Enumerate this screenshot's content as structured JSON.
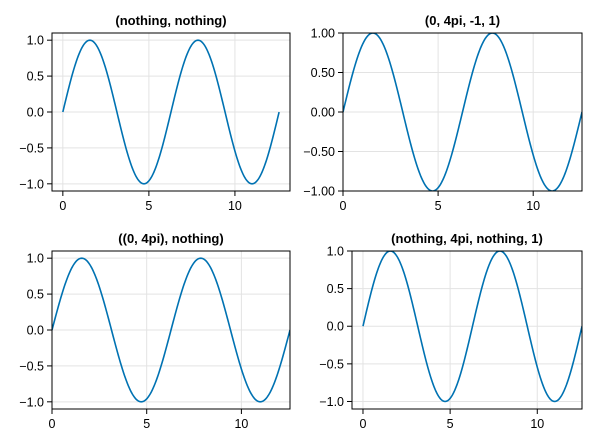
{
  "chart_data": [
    {
      "type": "line",
      "title": "(nothing, nothing)",
      "xlabel": "",
      "ylabel": "",
      "xlim": [
        -0.63,
        13.2
      ],
      "ylim": [
        -1.1,
        1.1
      ],
      "xticks": [
        0,
        5,
        10
      ],
      "xtick_labels": [
        "0",
        "5",
        "10"
      ],
      "yticks": [
        -1.0,
        -0.5,
        0.0,
        0.5,
        1.0
      ],
      "ytick_labels": [
        "−1.0",
        "−0.5",
        "0.0",
        "0.5",
        "1.0"
      ],
      "grid": true,
      "series": [
        {
          "function": "sin(x)",
          "x_range": [
            0,
            12.566
          ],
          "color": "#0072b2"
        }
      ]
    },
    {
      "type": "line",
      "title": "(0, 4pi, -1, 1)",
      "xlabel": "",
      "ylabel": "",
      "xlim": [
        0,
        12.566
      ],
      "ylim": [
        -1,
        1
      ],
      "xticks": [
        0,
        5,
        10
      ],
      "xtick_labels": [
        "0",
        "5",
        "10"
      ],
      "yticks": [
        -1.0,
        -0.5,
        0.0,
        0.5,
        1.0
      ],
      "ytick_labels": [
        "−1.00",
        "−0.50",
        "0.00",
        "0.50",
        "1.00"
      ],
      "grid": true,
      "series": [
        {
          "function": "sin(x)",
          "x_range": [
            0,
            12.566
          ],
          "color": "#0072b2"
        }
      ]
    },
    {
      "type": "line",
      "title": "((0, 4pi), nothing)",
      "xlabel": "",
      "ylabel": "",
      "xlim": [
        0,
        12.566
      ],
      "ylim": [
        -1.1,
        1.1
      ],
      "xticks": [
        0,
        5,
        10
      ],
      "xtick_labels": [
        "0",
        "5",
        "10"
      ],
      "yticks": [
        -1.0,
        -0.5,
        0.0,
        0.5,
        1.0
      ],
      "ytick_labels": [
        "−1.0",
        "−0.5",
        "0.0",
        "0.5",
        "1.0"
      ],
      "grid": true,
      "series": [
        {
          "function": "sin(x)",
          "x_range": [
            0,
            12.566
          ],
          "color": "#0072b2"
        }
      ]
    },
    {
      "type": "line",
      "title": "(nothing, 4pi, nothing, 1)",
      "xlabel": "",
      "ylabel": "",
      "xlim": [
        -0.63,
        12.566
      ],
      "ylim": [
        -1.1,
        1
      ],
      "xticks": [
        0,
        5,
        10
      ],
      "xtick_labels": [
        "0",
        "5",
        "10"
      ],
      "yticks": [
        -1.0,
        -0.5,
        0.0,
        0.5,
        1.0
      ],
      "ytick_labels": [
        "−1.0",
        "−0.5",
        "0.0",
        "0.5",
        "1.0"
      ],
      "grid": true,
      "series": [
        {
          "function": "sin(x)",
          "x_range": [
            0,
            12.566
          ],
          "color": "#0072b2"
        }
      ]
    }
  ]
}
